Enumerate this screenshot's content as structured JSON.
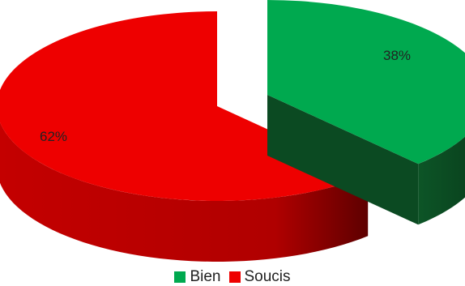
{
  "chart_data": {
    "type": "pie",
    "style": "3d-exploded",
    "categories": [
      "Bien",
      "Soucis"
    ],
    "values": [
      38,
      62
    ],
    "data_labels": [
      "38%",
      "62%"
    ],
    "colors": [
      "#00a94f",
      "#ee0000"
    ],
    "side_colors": [
      "#0b4a22",
      "#b00000"
    ],
    "title": "",
    "legend": {
      "placement": "bottom",
      "entries": [
        "Bien",
        "Soucis"
      ]
    }
  }
}
